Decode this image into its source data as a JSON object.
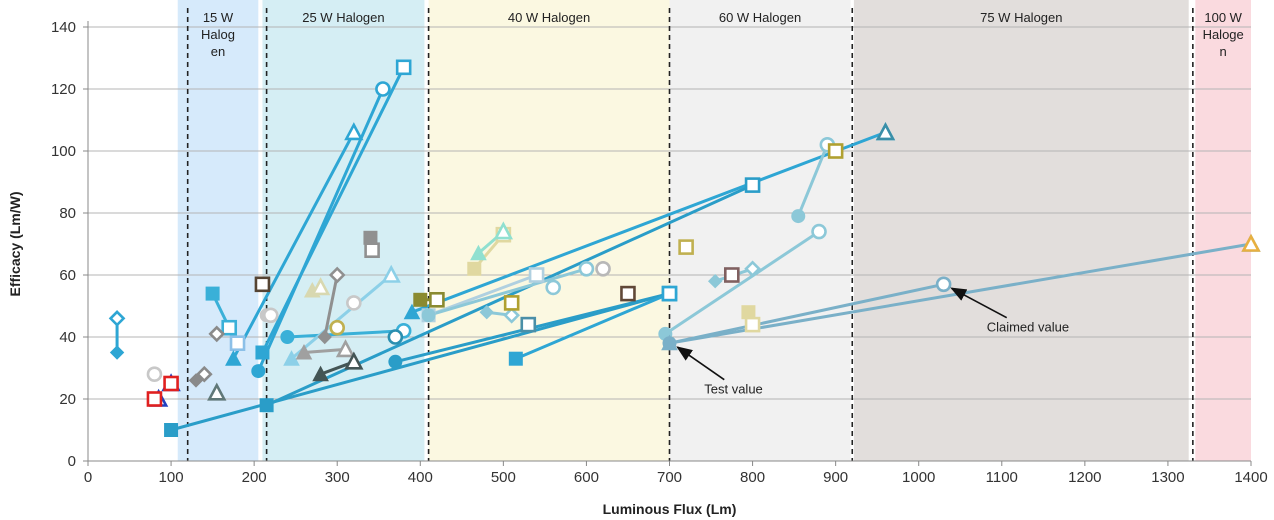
{
  "chart_data": {
    "type": "scatter",
    "title": "",
    "xlabel": "Luminous Flux (Lm)",
    "ylabel": "Efficacy (Lm/W)",
    "xlim": [
      0,
      1400
    ],
    "ylim": [
      0,
      140
    ],
    "x_ticks": [
      "0",
      "100",
      "200",
      "300",
      "400",
      "500",
      "600",
      "700",
      "800",
      "900",
      "1000",
      "1100",
      "1200",
      "1300",
      "1400"
    ],
    "y_ticks": [
      "0",
      "20",
      "40",
      "60",
      "80",
      "100",
      "120",
      "140"
    ],
    "grid": "horizontal",
    "bands": [
      {
        "label": "15 W Halog en",
        "lines": [
          "15 W",
          "Halog",
          "en"
        ],
        "x0": 108,
        "x1": 205,
        "color": "#d6eafb",
        "boundary_x": 120
      },
      {
        "label": "25 W Halogen",
        "lines": [
          "25 W Halogen"
        ],
        "x0": 210,
        "x1": 405,
        "color": "#d5eef4",
        "boundary_x": 215
      },
      {
        "label": "40 W Halogen",
        "lines": [
          "40 W Halogen"
        ],
        "x0": 410,
        "x1": 700,
        "color": "#fbf8e1",
        "boundary_x": 410
      },
      {
        "label": "60 W Halogen",
        "lines": [
          "60 W Halogen"
        ],
        "x0": 700,
        "x1": 918,
        "color": "#f1f1f1",
        "boundary_x": 700
      },
      {
        "label": "75 W Halogen",
        "lines": [
          "75 W Halogen"
        ],
        "x0": 922,
        "x1": 1325,
        "color": "#e2dedc",
        "boundary_x": 920
      },
      {
        "label": "100 W Haloge n",
        "lines": [
          "100 W",
          "Haloge",
          "n"
        ],
        "x0": 1333,
        "x1": 1400,
        "color": "#fadadf",
        "boundary_x": 1330
      }
    ],
    "pairs": [
      {
        "test": [
          35,
          35
        ],
        "claimed": [
          35,
          46
        ],
        "color": "#2ea6d4",
        "marker": "diamond"
      },
      {
        "test": [
          85,
          20
        ],
        "claimed": [
          85,
          20
        ],
        "color": "#2040c0",
        "marker": "triangle"
      },
      {
        "test": [
          100,
          25
        ],
        "claimed": [
          100,
          25
        ],
        "color": "#2040c0",
        "marker": "triangle"
      },
      {
        "test": [
          80,
          28
        ],
        "claimed": [
          80,
          28
        ],
        "color": "#c8c8c8",
        "marker": "circle"
      },
      {
        "test": [
          100,
          10
        ],
        "claimed": [
          700,
          54
        ],
        "color": "#2a9dc8",
        "marker": "square"
      },
      {
        "test": [
          130,
          26
        ],
        "claimed": [
          140,
          28
        ],
        "color": "#8a8a8a",
        "marker": "diamond"
      },
      {
        "test": [
          150,
          54
        ],
        "claimed": [
          170,
          43
        ],
        "color": "#3ab0d8",
        "marker": "square"
      },
      {
        "test": [
          155,
          22
        ],
        "claimed": [
          155,
          22
        ],
        "color": "#607878",
        "marker": "triangle"
      },
      {
        "test": [
          155,
          41
        ],
        "claimed": [
          155,
          41
        ],
        "color": "#8a8a8a",
        "marker": "diamond"
      },
      {
        "test": [
          180,
          38
        ],
        "claimed": [
          180,
          38
        ],
        "color": "#8cc0e8",
        "marker": "square"
      },
      {
        "test": [
          175,
          33
        ],
        "claimed": [
          320,
          106
        ],
        "color": "#2ea6d4",
        "marker": "triangle"
      },
      {
        "test": [
          210,
          35
        ],
        "claimed": [
          380,
          127
        ],
        "color": "#2ea6d4",
        "marker": "square"
      },
      {
        "test": [
          205,
          29
        ],
        "claimed": [
          355,
          120
        ],
        "color": "#2ea6d4",
        "marker": "circle"
      },
      {
        "test": [
          210,
          57
        ],
        "claimed": [
          210,
          57
        ],
        "color": "#554433",
        "marker": "square"
      },
      {
        "test": [
          215,
          18
        ],
        "claimed": [
          800,
          89
        ],
        "color": "#2a9dc8",
        "marker": "square"
      },
      {
        "test": [
          215,
          47
        ],
        "claimed": [
          220,
          47
        ],
        "color": "#c8c8c8",
        "marker": "circle"
      },
      {
        "test": [
          240,
          40
        ],
        "claimed": [
          380,
          42
        ],
        "color": "#3ab0d8",
        "marker": "circle"
      },
      {
        "test": [
          245,
          33
        ],
        "claimed": [
          365,
          60
        ],
        "color": "#8cd0e8",
        "marker": "triangle"
      },
      {
        "test": [
          260,
          35
        ],
        "claimed": [
          310,
          36
        ],
        "color": "#a0a0a0",
        "marker": "triangle"
      },
      {
        "test": [
          270,
          55
        ],
        "claimed": [
          280,
          56
        ],
        "color": "#d8d8b0",
        "marker": "triangle"
      },
      {
        "test": [
          280,
          28
        ],
        "claimed": [
          320,
          32
        ],
        "color": "#445555",
        "marker": "triangle"
      },
      {
        "test": [
          285,
          40
        ],
        "claimed": [
          300,
          60
        ],
        "color": "#909090",
        "marker": "diamond"
      },
      {
        "test": [
          300,
          43
        ],
        "claimed": [
          300,
          43
        ],
        "color": "#c0b050",
        "marker": "circle"
      },
      {
        "test": [
          320,
          51
        ],
        "claimed": [
          320,
          51
        ],
        "color": "#c8c8c8",
        "marker": "circle"
      },
      {
        "test": [
          340,
          72
        ],
        "claimed": [
          342,
          68
        ],
        "color": "#909090",
        "marker": "square"
      },
      {
        "test": [
          370,
          40
        ],
        "claimed": [
          370,
          40
        ],
        "color": "#2a8fb0",
        "marker": "circle"
      },
      {
        "test": [
          370,
          32
        ],
        "claimed": [
          700,
          54
        ],
        "color": "#2a9dc8",
        "marker": "circle"
      },
      {
        "test": [
          390,
          48
        ],
        "claimed": [
          960,
          106
        ],
        "color": "#2ea6d4",
        "marker": "triangle"
      },
      {
        "test": [
          400,
          52
        ],
        "claimed": [
          420,
          52
        ],
        "color": "#8a8a30",
        "marker": "square"
      },
      {
        "test": [
          410,
          47
        ],
        "claimed": [
          540,
          60
        ],
        "color": "#b0d0e0",
        "marker": "square"
      },
      {
        "test": [
          410,
          47
        ],
        "claimed": [
          600,
          62
        ],
        "color": "#8cc8d8",
        "marker": "circle"
      },
      {
        "test": [
          465,
          62
        ],
        "claimed": [
          500,
          73
        ],
        "color": "#e0d8a0",
        "marker": "square"
      },
      {
        "test": [
          480,
          48
        ],
        "claimed": [
          510,
          47
        ],
        "color": "#8cc8d8",
        "marker": "diamond"
      },
      {
        "test": [
          470,
          67
        ],
        "claimed": [
          500,
          74
        ],
        "color": "#90e0d0",
        "marker": "triangle"
      },
      {
        "test": [
          510,
          51
        ],
        "claimed": [
          510,
          51
        ],
        "color": "#b0a030",
        "marker": "square"
      },
      {
        "test": [
          515,
          33
        ],
        "claimed": [
          700,
          54
        ],
        "color": "#2ea6d4",
        "marker": "square"
      },
      {
        "test": [
          530,
          44
        ],
        "claimed": [
          530,
          44
        ],
        "color": "#4a8fa8",
        "marker": "square"
      },
      {
        "test": [
          560,
          56
        ],
        "claimed": [
          560,
          56
        ],
        "color": "#8cc8d8",
        "marker": "circle"
      },
      {
        "test": [
          620,
          62
        ],
        "claimed": [
          620,
          62
        ],
        "color": "#b8b8b8",
        "marker": "circle"
      },
      {
        "test": [
          650,
          54
        ],
        "claimed": [
          650,
          54
        ],
        "color": "#604838",
        "marker": "square"
      },
      {
        "test": [
          695,
          41
        ],
        "claimed": [
          880,
          74
        ],
        "color": "#8cc8d8",
        "marker": "circle"
      },
      {
        "test": [
          700,
          38
        ],
        "claimed": [
          1400,
          70
        ],
        "color": "#7ab0c8",
        "marker": "triangle"
      },
      {
        "test": [
          700,
          38
        ],
        "claimed": [
          1030,
          57
        ],
        "color": "#7ab0c8",
        "marker": "circle"
      },
      {
        "test": [
          720,
          69
        ],
        "claimed": [
          720,
          69
        ],
        "color": "#c0b050",
        "marker": "square"
      },
      {
        "test": [
          755,
          58
        ],
        "claimed": [
          800,
          62
        ],
        "color": "#8cc8d8",
        "marker": "diamond"
      },
      {
        "test": [
          775,
          60
        ],
        "claimed": [
          775,
          60
        ],
        "color": "#806060",
        "marker": "square"
      },
      {
        "test": [
          795,
          48
        ],
        "claimed": [
          800,
          44
        ],
        "color": "#e0d8a0",
        "marker": "square"
      },
      {
        "test": [
          855,
          79
        ],
        "claimed": [
          890,
          102
        ],
        "color": "#8cc8d8",
        "marker": "circle"
      },
      {
        "test": [
          900,
          100
        ],
        "claimed": [
          900,
          100
        ],
        "color": "#b0a030",
        "marker": "square"
      },
      {
        "test": [
          960,
          106
        ],
        "claimed": [
          960,
          106
        ],
        "color": "#3a8fa8",
        "marker": "triangle"
      },
      {
        "test": [
          1400,
          70
        ],
        "claimed": [
          1400,
          70
        ],
        "color": "#e8b040",
        "marker": "triangle"
      },
      {
        "test": [
          80,
          20
        ],
        "claimed": [
          80,
          20
        ],
        "color": "#e02020",
        "marker": "square"
      },
      {
        "test": [
          100,
          25
        ],
        "claimed": [
          100,
          25
        ],
        "color": "#e02020",
        "marker": "square"
      }
    ],
    "annotations": [
      {
        "text": "Claimed value",
        "point": [
          1030,
          57
        ],
        "label_at": [
          1130,
          43
        ]
      },
      {
        "text": "Test value",
        "point": [
          700,
          38
        ],
        "label_at": [
          790,
          23
        ]
      }
    ]
  }
}
